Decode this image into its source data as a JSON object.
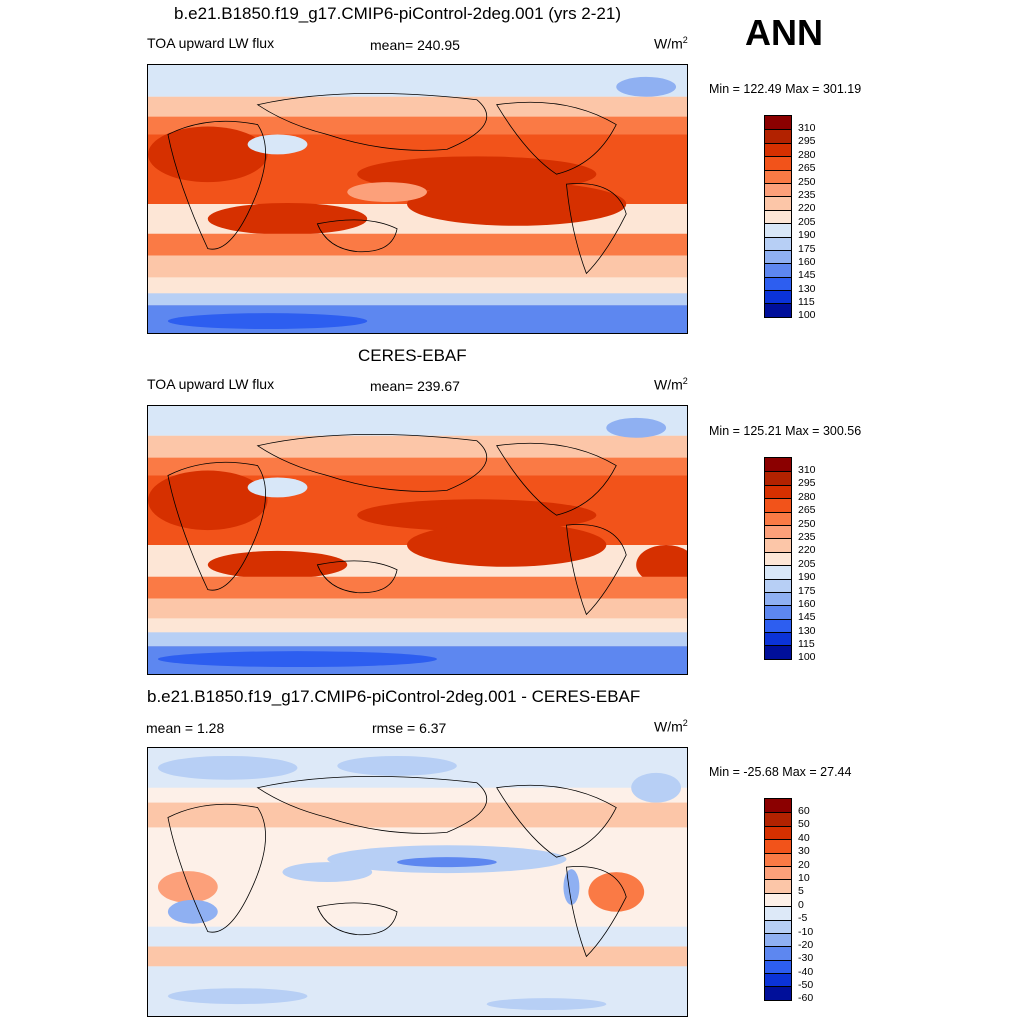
{
  "season": "ANN",
  "panels": [
    {
      "title": "b.e21.B1850.f19_g17.CMIP6-piControl-2deg.001 (yrs 2-21)",
      "left_label": "TOA upward LW flux",
      "center_label": "mean= 240.95",
      "units_base": "W/m",
      "units_exp": "2",
      "minmax": "Min = 122.49 Max = 301.19",
      "colorbar_labels": [
        "310",
        "295",
        "280",
        "265",
        "250",
        "235",
        "220",
        "205",
        "190",
        "175",
        "160",
        "145",
        "130",
        "115",
        "100"
      ],
      "colorbar_colors": [
        "#8b0000",
        "#b22200",
        "#d63000",
        "#f2531a",
        "#fa7a45",
        "#fca07a",
        "#fcc6a8",
        "#fde6d6",
        "#d8e7f8",
        "#b7cff5",
        "#8fb0f2",
        "#5d87f0",
        "#2d5ef0",
        "#0b33d8",
        "#000f9a"
      ]
    },
    {
      "title": "CERES-EBAF",
      "left_label": "TOA upward LW flux",
      "center_label": "mean= 239.67",
      "units_base": "W/m",
      "units_exp": "2",
      "minmax": "Min = 125.21 Max = 300.56",
      "colorbar_labels": [
        "310",
        "295",
        "280",
        "265",
        "250",
        "235",
        "220",
        "205",
        "190",
        "175",
        "160",
        "145",
        "130",
        "115",
        "100"
      ],
      "colorbar_colors": [
        "#8b0000",
        "#b22200",
        "#d63000",
        "#f2531a",
        "#fa7a45",
        "#fca07a",
        "#fcc6a8",
        "#fde6d6",
        "#d8e7f8",
        "#b7cff5",
        "#8fb0f2",
        "#5d87f0",
        "#2d5ef0",
        "#0b33d8",
        "#000f9a"
      ]
    },
    {
      "title": "b.e21.B1850.f19_g17.CMIP6-piControl-2deg.001 - CERES-EBAF",
      "left_label": "mean =   1.28",
      "center_label": "rmse =   6.37",
      "units_base": "W/m",
      "units_exp": "2",
      "minmax": "Min = -25.68 Max =  27.44",
      "colorbar_labels": [
        "60",
        "50",
        "40",
        "30",
        "20",
        "10",
        "5",
        "0",
        "-5",
        "-10",
        "-20",
        "-30",
        "-40",
        "-50",
        "-60"
      ],
      "colorbar_colors": [
        "#8b0000",
        "#b22200",
        "#d63000",
        "#f2531a",
        "#fa7a45",
        "#fca07a",
        "#fcc6a8",
        "#fdf0e8",
        "#dde9f8",
        "#b7cff5",
        "#8fb0f2",
        "#5d87f0",
        "#2d5ef0",
        "#0b33d8",
        "#000f9a"
      ]
    }
  ]
}
